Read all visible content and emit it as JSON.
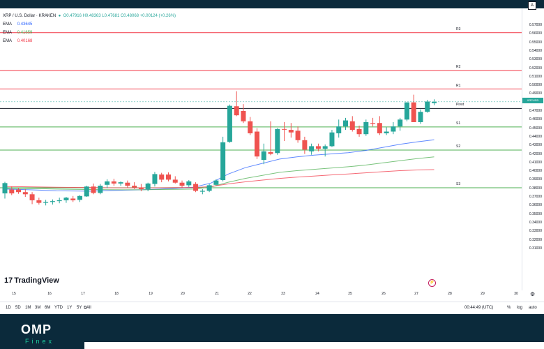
{
  "header": {
    "symbol": "XRP / U.S. Dollar · KRAKEN",
    "ohlc": "O0.47916 H0.48363 L0.47681 C0.48068 +0.00124 (+0.26%)",
    "indicators": [
      {
        "name": "EMA",
        "value": "0.43645",
        "color": "#2962ff"
      },
      {
        "name": "EMA",
        "value": "0.41659",
        "color": "#4caf50"
      },
      {
        "name": "EMA",
        "value": "0.40168",
        "color": "#f23645"
      }
    ]
  },
  "price_axis": {
    "labels": [
      "0.57000",
      "0.56000",
      "0.55000",
      "0.54000",
      "0.53000",
      "0.52000",
      "0.51000",
      "0.50000",
      "0.49000",
      "0.48000",
      "0.47000",
      "0.46000",
      "0.45000",
      "0.44000",
      "0.43000",
      "0.42000",
      "0.41000",
      "0.40000",
      "0.39000",
      "0.38000",
      "0.37000",
      "0.36000",
      "0.35000",
      "0.34000",
      "0.33000",
      "0.32000",
      "0.31000"
    ],
    "current_symbol": "XRPUSD",
    "current_time": "03:15:10",
    "settings_label": "A"
  },
  "levels": [
    {
      "name": "R3",
      "value": 0.5613,
      "color": "#f23645"
    },
    {
      "name": "R2",
      "value": 0.5171,
      "color": "#f23645"
    },
    {
      "name": "R1",
      "value": 0.4956,
      "color": "#f23645"
    },
    {
      "name": "Pivot",
      "value": 0.4729,
      "color": "#131722"
    },
    {
      "name": "S1",
      "value": 0.4514,
      "color": "#4caf50"
    },
    {
      "name": "S2",
      "value": 0.4245,
      "color": "#4caf50"
    },
    {
      "name": "S3",
      "value": 0.3806,
      "color": "#4caf50"
    }
  ],
  "time_axis": {
    "labels": [
      "15",
      "16",
      "17",
      "18",
      "19",
      "20",
      "21",
      "22",
      "23",
      "24",
      "25",
      "26",
      "27",
      "28",
      "29",
      "30"
    ]
  },
  "bottom_bar": {
    "ranges": [
      "1D",
      "5D",
      "1M",
      "3M",
      "6M",
      "YTD",
      "1Y",
      "5Y",
      "All"
    ],
    "time": "00:44:49 (UTC)",
    "percent": "%",
    "log": "log",
    "auto": "auto"
  },
  "logo": {
    "text": "TradingView",
    "mark": "17"
  },
  "footer": {
    "brand": "OMP",
    "sub": "Finex"
  },
  "chart_data": {
    "type": "candlestick",
    "title": "XRP / U.S. Dollar · KRAKEN",
    "x_ticks": [
      "15",
      "16",
      "17",
      "18",
      "19",
      "20",
      "21",
      "22",
      "23",
      "24",
      "25",
      "26",
      "27",
      "28",
      "29",
      "30"
    ],
    "ylim": [
      0.305,
      0.578
    ],
    "candles": [
      {
        "o": 0.374,
        "h": 0.3875,
        "l": 0.368,
        "c": 0.386
      },
      {
        "o": 0.3785,
        "h": 0.382,
        "l": 0.372,
        "c": 0.374
      },
      {
        "o": 0.3785,
        "h": 0.3805,
        "l": 0.3735,
        "c": 0.3755
      },
      {
        "o": 0.3755,
        "h": 0.379,
        "l": 0.37,
        "c": 0.373
      },
      {
        "o": 0.373,
        "h": 0.3755,
        "l": 0.3615,
        "c": 0.366
      },
      {
        "o": 0.366,
        "h": 0.369,
        "l": 0.361,
        "c": 0.363
      },
      {
        "o": 0.363,
        "h": 0.3665,
        "l": 0.36,
        "c": 0.364
      },
      {
        "o": 0.364,
        "h": 0.367,
        "l": 0.361,
        "c": 0.365
      },
      {
        "o": 0.365,
        "h": 0.369,
        "l": 0.3625,
        "c": 0.366
      },
      {
        "o": 0.366,
        "h": 0.37,
        "l": 0.363,
        "c": 0.369
      },
      {
        "o": 0.368,
        "h": 0.371,
        "l": 0.364,
        "c": 0.366
      },
      {
        "o": 0.3665,
        "h": 0.372,
        "l": 0.364,
        "c": 0.371
      },
      {
        "o": 0.3705,
        "h": 0.383,
        "l": 0.37,
        "c": 0.382
      },
      {
        "o": 0.382,
        "h": 0.3855,
        "l": 0.373,
        "c": 0.3745
      },
      {
        "o": 0.3745,
        "h": 0.385,
        "l": 0.373,
        "c": 0.383
      },
      {
        "o": 0.384,
        "h": 0.3905,
        "l": 0.38,
        "c": 0.388
      },
      {
        "o": 0.388,
        "h": 0.391,
        "l": 0.383,
        "c": 0.3855
      },
      {
        "o": 0.3855,
        "h": 0.388,
        "l": 0.383,
        "c": 0.387
      },
      {
        "o": 0.3865,
        "h": 0.389,
        "l": 0.381,
        "c": 0.383
      },
      {
        "o": 0.383,
        "h": 0.387,
        "l": 0.379,
        "c": 0.381
      },
      {
        "o": 0.381,
        "h": 0.385,
        "l": 0.3765,
        "c": 0.379
      },
      {
        "o": 0.379,
        "h": 0.3865,
        "l": 0.3765,
        "c": 0.3855
      },
      {
        "o": 0.385,
        "h": 0.399,
        "l": 0.382,
        "c": 0.3965
      },
      {
        "o": 0.396,
        "h": 0.398,
        "l": 0.387,
        "c": 0.39
      },
      {
        "o": 0.396,
        "h": 0.3985,
        "l": 0.388,
        "c": 0.39
      },
      {
        "o": 0.39,
        "h": 0.394,
        "l": 0.3855,
        "c": 0.3865
      },
      {
        "o": 0.3865,
        "h": 0.389,
        "l": 0.381,
        "c": 0.383
      },
      {
        "o": 0.3835,
        "h": 0.3895,
        "l": 0.3815,
        "c": 0.388
      },
      {
        "o": 0.385,
        "h": 0.387,
        "l": 0.3755,
        "c": 0.377
      },
      {
        "o": 0.376,
        "h": 0.379,
        "l": 0.373,
        "c": 0.377
      },
      {
        "o": 0.377,
        "h": 0.385,
        "l": 0.3755,
        "c": 0.3835
      },
      {
        "o": 0.384,
        "h": 0.3905,
        "l": 0.3835,
        "c": 0.389
      },
      {
        "o": 0.3895,
        "h": 0.44,
        "l": 0.388,
        "c": 0.4335
      },
      {
        "o": 0.434,
        "h": 0.4775,
        "l": 0.433,
        "c": 0.476
      },
      {
        "o": 0.4755,
        "h": 0.493,
        "l": 0.464,
        "c": 0.465
      },
      {
        "o": 0.47,
        "h": 0.478,
        "l": 0.456,
        "c": 0.458
      },
      {
        "o": 0.458,
        "h": 0.463,
        "l": 0.442,
        "c": 0.444
      },
      {
        "o": 0.446,
        "h": 0.45,
        "l": 0.414,
        "c": 0.417
      },
      {
        "o": 0.413,
        "h": 0.432,
        "l": 0.408,
        "c": 0.423
      },
      {
        "o": 0.422,
        "h": 0.458,
        "l": 0.4185,
        "c": 0.42
      },
      {
        "o": 0.421,
        "h": 0.45,
        "l": 0.419,
        "c": 0.449
      },
      {
        "o": 0.449,
        "h": 0.457,
        "l": 0.435,
        "c": 0.4485
      },
      {
        "o": 0.448,
        "h": 0.456,
        "l": 0.439,
        "c": 0.445
      },
      {
        "o": 0.447,
        "h": 0.452,
        "l": 0.433,
        "c": 0.436
      },
      {
        "o": 0.436,
        "h": 0.44,
        "l": 0.42,
        "c": 0.425
      },
      {
        "o": 0.423,
        "h": 0.432,
        "l": 0.419,
        "c": 0.429
      },
      {
        "o": 0.429,
        "h": 0.432,
        "l": 0.423,
        "c": 0.426
      },
      {
        "o": 0.426,
        "h": 0.431,
        "l": 0.417,
        "c": 0.429
      },
      {
        "o": 0.429,
        "h": 0.448,
        "l": 0.428,
        "c": 0.445
      },
      {
        "o": 0.444,
        "h": 0.46,
        "l": 0.439,
        "c": 0.452
      },
      {
        "o": 0.452,
        "h": 0.462,
        "l": 0.448,
        "c": 0.459
      },
      {
        "o": 0.458,
        "h": 0.464,
        "l": 0.446,
        "c": 0.448
      },
      {
        "o": 0.449,
        "h": 0.453,
        "l": 0.44,
        "c": 0.443
      },
      {
        "o": 0.443,
        "h": 0.46,
        "l": 0.441,
        "c": 0.457
      },
      {
        "o": 0.456,
        "h": 0.462,
        "l": 0.452,
        "c": 0.455
      },
      {
        "o": 0.456,
        "h": 0.464,
        "l": 0.442,
        "c": 0.444
      },
      {
        "o": 0.444,
        "h": 0.451,
        "l": 0.442,
        "c": 0.446
      },
      {
        "o": 0.446,
        "h": 0.457,
        "l": 0.443,
        "c": 0.452
      },
      {
        "o": 0.452,
        "h": 0.462,
        "l": 0.447,
        "c": 0.46
      },
      {
        "o": 0.46,
        "h": 0.48,
        "l": 0.458,
        "c": 0.48
      },
      {
        "o": 0.48,
        "h": 0.489,
        "l": 0.457,
        "c": 0.457
      },
      {
        "o": 0.457,
        "h": 0.472,
        "l": 0.455,
        "c": 0.469
      },
      {
        "o": 0.469,
        "h": 0.483,
        "l": 0.468,
        "c": 0.481
      },
      {
        "o": 0.4792,
        "h": 0.4836,
        "l": 0.4768,
        "c": 0.4807
      }
    ],
    "series": [
      {
        "name": "EMA",
        "color": "#2962ff",
        "y": [
          0.379,
          0.3785,
          0.3778,
          0.377,
          0.3768,
          0.3766,
          0.3772,
          0.3778,
          0.3782,
          0.379,
          0.38,
          0.3812,
          0.386,
          0.3965,
          0.404,
          0.409,
          0.414,
          0.4165,
          0.4185,
          0.42,
          0.4215,
          0.424,
          0.4275,
          0.4312,
          0.434,
          0.4364
        ]
      },
      {
        "name": "EMA",
        "color": "#4caf50",
        "y": [
          0.38,
          0.3798,
          0.3795,
          0.379,
          0.3788,
          0.3785,
          0.3783,
          0.3782,
          0.3782,
          0.3785,
          0.3787,
          0.379,
          0.3815,
          0.387,
          0.3915,
          0.395,
          0.3985,
          0.4005,
          0.402,
          0.4035,
          0.405,
          0.407,
          0.4095,
          0.412,
          0.4145,
          0.4166
        ]
      },
      {
        "name": "EMA",
        "color": "#f23645",
        "y": [
          0.382,
          0.3818,
          0.3815,
          0.3812,
          0.381,
          0.3808,
          0.3806,
          0.3805,
          0.3805,
          0.3806,
          0.3807,
          0.3808,
          0.382,
          0.385,
          0.3875,
          0.3895,
          0.3915,
          0.393,
          0.3942,
          0.3955,
          0.3967,
          0.398,
          0.3993,
          0.4005,
          0.4013,
          0.4017
        ]
      }
    ]
  }
}
